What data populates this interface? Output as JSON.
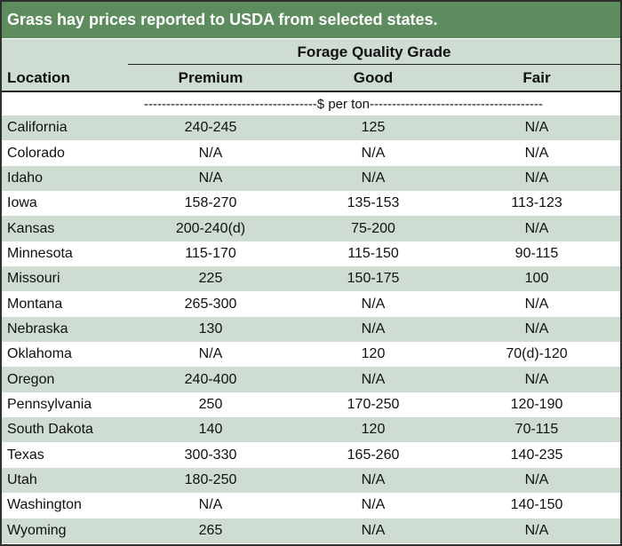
{
  "title": "Grass hay prices reported to USDA from selected states.",
  "header": {
    "group_label": "Forage Quality Grade",
    "location_label": "Location",
    "columns": [
      "Premium",
      "Good",
      "Fair"
    ]
  },
  "units_label": "---------------------------------------$ per ton---------------------------------------",
  "rows": [
    {
      "location": "California",
      "premium": "240-245",
      "good": "125",
      "fair": "N/A"
    },
    {
      "location": "Colorado",
      "premium": "N/A",
      "good": "N/A",
      "fair": "N/A"
    },
    {
      "location": "Idaho",
      "premium": "N/A",
      "good": "N/A",
      "fair": "N/A"
    },
    {
      "location": "Iowa",
      "premium": "158-270",
      "good": "135-153",
      "fair": "113-123"
    },
    {
      "location": "Kansas",
      "premium": "200-240(d)",
      "good": "75-200",
      "fair": "N/A"
    },
    {
      "location": "Minnesota",
      "premium": "115-170",
      "good": "115-150",
      "fair": "90-115"
    },
    {
      "location": "Missouri",
      "premium": "225",
      "good": "150-175",
      "fair": "100"
    },
    {
      "location": "Montana",
      "premium": "265-300",
      "good": "N/A",
      "fair": "N/A"
    },
    {
      "location": "Nebraska",
      "premium": "130",
      "good": "N/A",
      "fair": "N/A"
    },
    {
      "location": "Oklahoma",
      "premium": "N/A",
      "good": "120",
      "fair": "70(d)-120"
    },
    {
      "location": "Oregon",
      "premium": "240-400",
      "good": "N/A",
      "fair": "N/A"
    },
    {
      "location": "Pennsylvania",
      "premium": "250",
      "good": "170-250",
      "fair": "120-190"
    },
    {
      "location": "South Dakota",
      "premium": "140",
      "good": "120",
      "fair": "70-115"
    },
    {
      "location": "Texas",
      "premium": "300-330",
      "good": "165-260",
      "fair": "140-235"
    },
    {
      "location": "Utah",
      "premium": "180-250",
      "good": "N/A",
      "fair": "N/A"
    },
    {
      "location": "Washington",
      "premium": "N/A",
      "good": "N/A",
      "fair": "140-150"
    },
    {
      "location": "Wyoming",
      "premium": "265",
      "good": "N/A",
      "fair": "N/A"
    }
  ],
  "colors": {
    "title_bg": "#5d8c5f",
    "shade": "#cfdcd2"
  }
}
